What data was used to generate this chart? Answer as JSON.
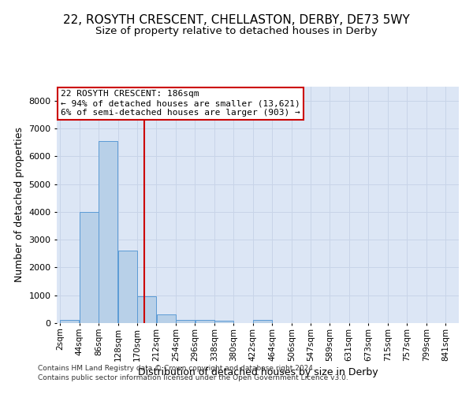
{
  "title": "22, ROSYTH CRESCENT, CHELLASTON, DERBY, DE73 5WY",
  "subtitle": "Size of property relative to detached houses in Derby",
  "xlabel": "Distribution of detached houses by size in Derby",
  "ylabel": "Number of detached properties",
  "bar_edges": [
    2,
    44,
    86,
    128,
    170,
    212,
    254,
    296,
    338,
    380,
    422,
    464,
    506,
    547,
    589,
    631,
    673,
    715,
    757,
    799,
    841
  ],
  "bar_heights": [
    100,
    4000,
    6550,
    2600,
    975,
    325,
    125,
    100,
    75,
    0,
    100,
    0,
    0,
    0,
    0,
    0,
    0,
    0,
    0,
    0
  ],
  "bar_color": "#b8d0e8",
  "bar_edge_color": "#5b9bd5",
  "vline_x": 186,
  "vline_color": "#cc0000",
  "annotation_text": "22 ROSYTH CRESCENT: 186sqm\n← 94% of detached houses are smaller (13,621)\n6% of semi-detached houses are larger (903) →",
  "annotation_box_color": "#cc0000",
  "ylim": [
    0,
    8500
  ],
  "xlim_min": -5,
  "xlim_max": 870,
  "grid_color": "#c8d4e8",
  "bg_color": "#dce6f5",
  "title_fontsize": 11,
  "subtitle_fontsize": 9.5,
  "axis_label_fontsize": 9,
  "tick_fontsize": 7.5,
  "tick_labels": [
    "2sqm",
    "44sqm",
    "86sqm",
    "128sqm",
    "170sqm",
    "212sqm",
    "254sqm",
    "296sqm",
    "338sqm",
    "380sqm",
    "422sqm",
    "464sqm",
    "506sqm",
    "547sqm",
    "589sqm",
    "631sqm",
    "673sqm",
    "715sqm",
    "757sqm",
    "799sqm",
    "841sqm"
  ],
  "footer_line1": "Contains HM Land Registry data © Crown copyright and database right 2024.",
  "footer_line2": "Contains public sector information licensed under the Open Government Licence v3.0."
}
